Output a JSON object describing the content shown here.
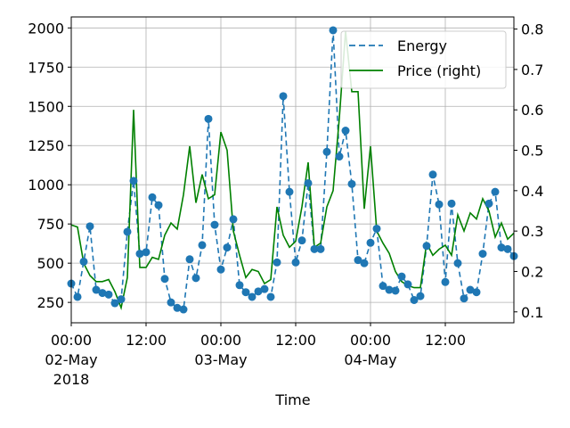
{
  "chart_data": {
    "type": "line",
    "xlabel": "Time",
    "ylabel": "",
    "ylim_left": [
      120,
      2070
    ],
    "ylim_right": [
      0.073,
      0.83
    ],
    "x_start": "2018-05-02 00:00",
    "x_step_hours": 1,
    "x_range_hours": [
      0,
      71
    ],
    "x_ticks": [
      {
        "hour": 0,
        "lines": [
          "00:00",
          "02-May",
          "2018"
        ]
      },
      {
        "hour": 12,
        "lines": [
          "12:00"
        ]
      },
      {
        "hour": 24,
        "lines": [
          "00:00",
          "03-May"
        ]
      },
      {
        "hour": 36,
        "lines": [
          "12:00"
        ]
      },
      {
        "hour": 48,
        "lines": [
          "00:00",
          "04-May"
        ]
      },
      {
        "hour": 60,
        "lines": [
          "12:00"
        ]
      }
    ],
    "y_ticks_left": [
      250,
      500,
      750,
      1000,
      1250,
      1500,
      1750,
      2000
    ],
    "y_ticks_right": [
      0.1,
      0.2,
      0.3,
      0.4,
      0.5,
      0.6,
      0.7,
      0.8
    ],
    "grid": true,
    "legend_position": "top-right",
    "series": [
      {
        "name": "Energy",
        "axis": "left",
        "style": "dashed-with-markers",
        "color": "#1f77b4",
        "values": [
          370,
          285,
          510,
          735,
          330,
          310,
          300,
          245,
          270,
          700,
          1025,
          560,
          570,
          920,
          870,
          400,
          250,
          215,
          205,
          525,
          405,
          615,
          1420,
          745,
          460,
          600,
          780,
          360,
          315,
          285,
          320,
          335,
          285,
          505,
          1565,
          955,
          505,
          645,
          1010,
          590,
          590,
          1210,
          1985,
          1180,
          1345,
          1005,
          520,
          500,
          630,
          720,
          355,
          330,
          325,
          415,
          365,
          265,
          290,
          610,
          1065,
          875,
          380,
          880,
          500,
          275,
          330,
          315,
          560,
          880,
          955,
          600,
          590,
          545
        ]
      },
      {
        "name": "Price (right)",
        "axis": "right",
        "style": "solid",
        "color": "#008000",
        "values": [
          0.315,
          0.31,
          0.22,
          0.19,
          0.175,
          0.175,
          0.18,
          0.15,
          0.11,
          0.185,
          0.6,
          0.21,
          0.21,
          0.235,
          0.23,
          0.29,
          0.32,
          0.305,
          0.39,
          0.51,
          0.37,
          0.44,
          0.38,
          0.39,
          0.545,
          0.5,
          0.3,
          0.24,
          0.185,
          0.205,
          0.2,
          0.17,
          0.18,
          0.36,
          0.29,
          0.26,
          0.275,
          0.36,
          0.47,
          0.26,
          0.27,
          0.36,
          0.4,
          0.58,
          0.795,
          0.645,
          0.645,
          0.355,
          0.51,
          0.3,
          0.27,
          0.245,
          0.2,
          0.175,
          0.165,
          0.16,
          0.16,
          0.27,
          0.24,
          0.255,
          0.265,
          0.24,
          0.34,
          0.3,
          0.345,
          0.33,
          0.38,
          0.35,
          0.285,
          0.32,
          0.28,
          0.295
        ]
      }
    ]
  }
}
